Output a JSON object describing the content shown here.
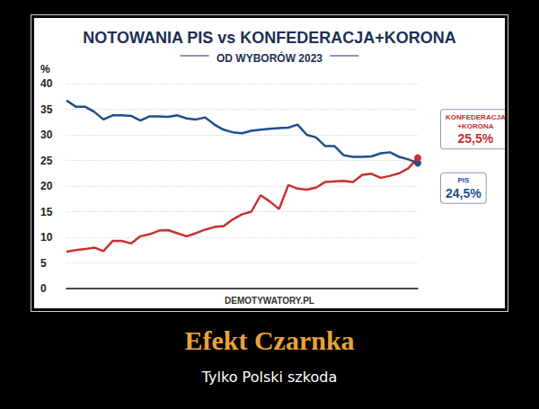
{
  "chart_data": {
    "type": "line",
    "title": "NOTOWANIA PIS vs KONFEDERACJA+KORONA",
    "subtitle": "OD WYBORÓW 2023",
    "y_label": "%",
    "annotations": [
      "DEMOTYWATORY.PL"
    ],
    "categories": [
      null,
      null,
      null,
      null,
      null,
      null,
      null,
      null,
      null,
      null,
      null,
      null,
      null,
      null,
      null,
      null,
      null,
      null,
      null,
      null,
      null,
      null,
      null,
      null,
      null,
      null,
      null,
      null,
      null,
      null,
      null,
      null,
      null,
      null,
      null,
      null,
      null,
      null,
      null
    ],
    "series": [
      {
        "name": "PIS",
        "color": "#1f4e8c",
        "values": [
          36.7,
          35.5,
          35.5,
          34.5,
          33,
          33.8,
          33.8,
          33.7,
          32.8,
          33.6,
          33.6,
          33.5,
          33.8,
          33.2,
          33,
          33.4,
          32,
          31,
          30.5,
          30.3,
          30.8,
          31,
          31.2,
          31.3,
          31.4,
          32,
          30,
          29.5,
          27.8,
          27.8,
          26,
          25.7,
          25.7,
          25.8,
          26.4,
          26.6,
          25.7,
          25.2,
          24.5
        ],
        "value_labels": [
          null,
          null,
          null,
          null,
          null,
          null,
          null,
          null,
          null,
          null,
          null,
          null,
          null,
          null,
          null,
          null,
          null,
          null,
          null,
          null,
          null,
          null,
          null,
          null,
          null,
          null,
          null,
          null,
          null,
          null,
          null,
          null,
          null,
          null,
          null,
          null,
          null,
          null,
          "24,5%"
        ]
      },
      {
        "name": "KONFEDERACJA +KORONA",
        "color": "#c8302f",
        "values": [
          7.2,
          7.5,
          7.7,
          8,
          7.3,
          9.3,
          9.3,
          8.8,
          10.2,
          10.6,
          11.3,
          11.4,
          10.8,
          10.2,
          10.8,
          11.5,
          12,
          12.2,
          13.5,
          14.5,
          15,
          18.2,
          17,
          15.5,
          20.2,
          19.5,
          19.3,
          19.7,
          20.8,
          20.9,
          21,
          20.8,
          22.2,
          22.4,
          21.6,
          22,
          22.5,
          23.5,
          25.5
        ],
        "value_labels": [
          null,
          null,
          null,
          null,
          null,
          null,
          null,
          null,
          null,
          null,
          null,
          null,
          null,
          null,
          null,
          null,
          null,
          null,
          null,
          null,
          null,
          null,
          null,
          null,
          null,
          null,
          null,
          null,
          null,
          null,
          null,
          null,
          null,
          null,
          null,
          null,
          null,
          null,
          "25,5%"
        ]
      }
    ],
    "ylim": [
      0,
      40
    ],
    "yticks": [
      0,
      5,
      10,
      15,
      20,
      25,
      30,
      35,
      40
    ],
    "grid": true,
    "tick_labels": "y",
    "marker": "circle"
  },
  "caption": {
    "title": "Efekt Czarnka",
    "subtitle": "Tylko Polski szkoda"
  }
}
